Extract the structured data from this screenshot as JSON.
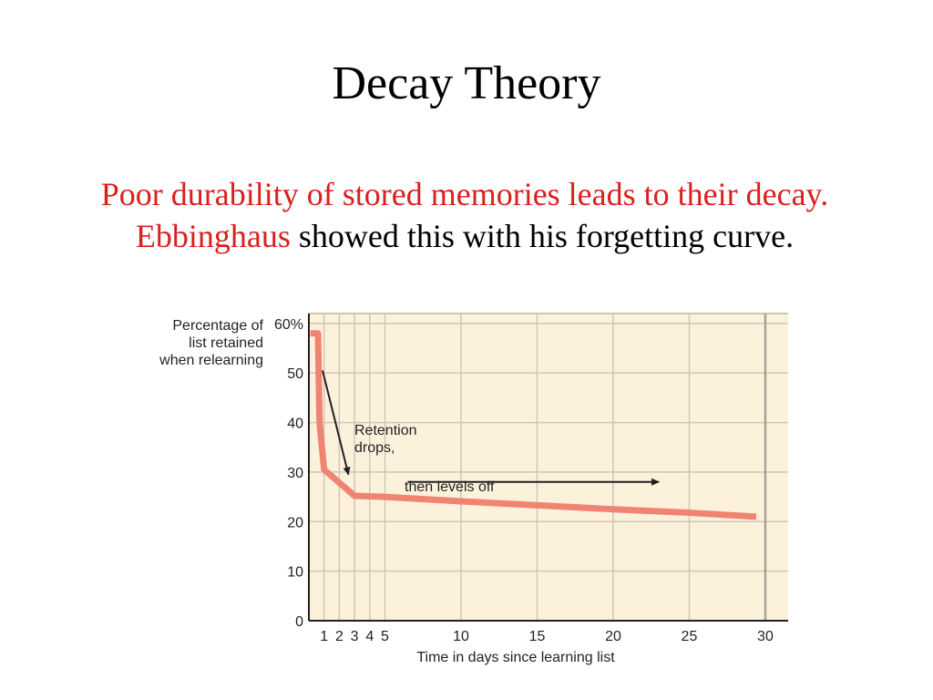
{
  "slide": {
    "title": "Decay Theory",
    "body": {
      "red_part1": "Poor durability of stored memories leads to their decay. ",
      "red_part2": "Ebbinghaus",
      "black_part": " showed this with his forgetting curve."
    }
  },
  "colors": {
    "accent_red": "#d9201f",
    "plot_background": "#fcf2dc",
    "grid": "#cfc6b4",
    "curve": "#f08372"
  },
  "chart_data": {
    "type": "line",
    "title": "",
    "ylabel": [
      "Percentage of",
      "list retained",
      "when relearning"
    ],
    "xlabel": "Time in days since learning list",
    "xlim": [
      0,
      31.5
    ],
    "ylim": [
      0,
      62
    ],
    "xticks": [
      1,
      2,
      3,
      4,
      5,
      10,
      15,
      20,
      25,
      30
    ],
    "xtick_labels": [
      "1",
      "2",
      "3",
      "4",
      "5",
      "10",
      "15",
      "20",
      "25",
      "30"
    ],
    "yticks": [
      0,
      10,
      20,
      30,
      40,
      50,
      60
    ],
    "ytick_labels": [
      "0",
      "10",
      "20",
      "30",
      "40",
      "50",
      "60%"
    ],
    "grid": true,
    "series": [
      {
        "x": [
          0.1,
          0.6,
          0.7,
          1.0,
          3.0,
          5,
          10,
          15,
          20,
          25,
          29.4
        ],
        "y": [
          58,
          58,
          40,
          30.5,
          25.2,
          25,
          24.1,
          23.3,
          22.5,
          21.8,
          21
        ]
      }
    ],
    "annotations": [
      {
        "id": "retention",
        "lines": [
          "Retention",
          "drops,"
        ],
        "arrow_from": [
          0.9,
          50.5
        ],
        "arrow_to": [
          2.6,
          29.5
        ]
      },
      {
        "id": "levels",
        "lines": [
          "then levels off"
        ],
        "arrow_from": [
          6.5,
          28
        ],
        "arrow_to": [
          23,
          28
        ]
      }
    ]
  }
}
